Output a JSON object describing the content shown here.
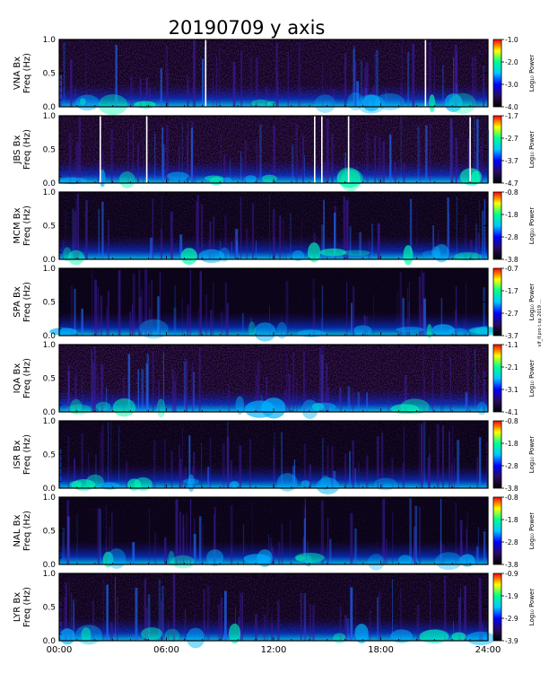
{
  "title": "20190709  y  axis",
  "side_note": "vlf_lf.pro  t.sp  2019  …",
  "time_ticks": [
    "00:00",
    "06:00",
    "12:00",
    "18:00",
    "24:00"
  ],
  "freq_ticks": [
    "0.0",
    "0.5",
    "1.0"
  ],
  "freq_unit": "Freq (Hz)",
  "colorbar_label": "Log₁₀ Power",
  "chart_data": {
    "type": "heatmap",
    "x_range_hours": [
      0,
      24
    ],
    "y_range_hz": [
      0,
      1.0
    ],
    "colormap": [
      "#000000",
      "#2a0a5e",
      "#0000ff",
      "#00c8ff",
      "#00ff90",
      "#ffff00",
      "#ff0000"
    ],
    "panels": [
      {
        "station": "VNA Bx",
        "cbar_ticks": [
          "-1.0",
          "-2.0",
          "-3.0",
          "-4.0"
        ],
        "cbar_range": [
          -4.0,
          -1.0
        ],
        "base": 0.28,
        "gaps_h": [
          8.2,
          20.5
        ]
      },
      {
        "station": "JBS Bx",
        "cbar_ticks": [
          "-1.7",
          "-2.7",
          "-3.7",
          "-4.7"
        ],
        "cbar_range": [
          -4.7,
          -1.7
        ],
        "base": 0.3,
        "gaps_h": [
          2.3,
          4.9,
          14.3,
          14.7,
          16.2,
          23.0
        ]
      },
      {
        "station": "MCM Bx",
        "cbar_ticks": [
          "-0.8",
          "-1.8",
          "-2.8",
          "-3.8"
        ],
        "cbar_range": [
          -3.8,
          -0.8
        ],
        "base": 0.18,
        "gaps_h": []
      },
      {
        "station": "SPA Bx",
        "cbar_ticks": [
          "-0.7",
          "-1.7",
          "-2.7",
          "-3.7"
        ],
        "cbar_range": [
          -3.7,
          -0.7
        ],
        "base": 0.1,
        "gaps_h": []
      },
      {
        "station": "IQA Bx",
        "cbar_ticks": [
          "-1.1",
          "-2.1",
          "-3.1",
          "-4.1"
        ],
        "cbar_range": [
          -4.1,
          -1.1
        ],
        "base": 0.3,
        "gaps_h": []
      },
      {
        "station": "ISR Bx",
        "cbar_ticks": [
          "-0.8",
          "-1.8",
          "-2.8",
          "-3.8"
        ],
        "cbar_range": [
          -3.8,
          -0.8
        ],
        "base": 0.16,
        "gaps_h": []
      },
      {
        "station": "NAL Bx",
        "cbar_ticks": [
          "-0.8",
          "-1.8",
          "-2.8",
          "-3.8"
        ],
        "cbar_range": [
          -3.8,
          -0.8
        ],
        "base": 0.12,
        "gaps_h": []
      },
      {
        "station": "LYR Bx",
        "cbar_ticks": [
          "-0.9",
          "-1.9",
          "-2.9",
          "-3.9"
        ],
        "cbar_range": [
          -3.9,
          -0.9
        ],
        "base": 0.22,
        "gaps_h": []
      }
    ]
  }
}
